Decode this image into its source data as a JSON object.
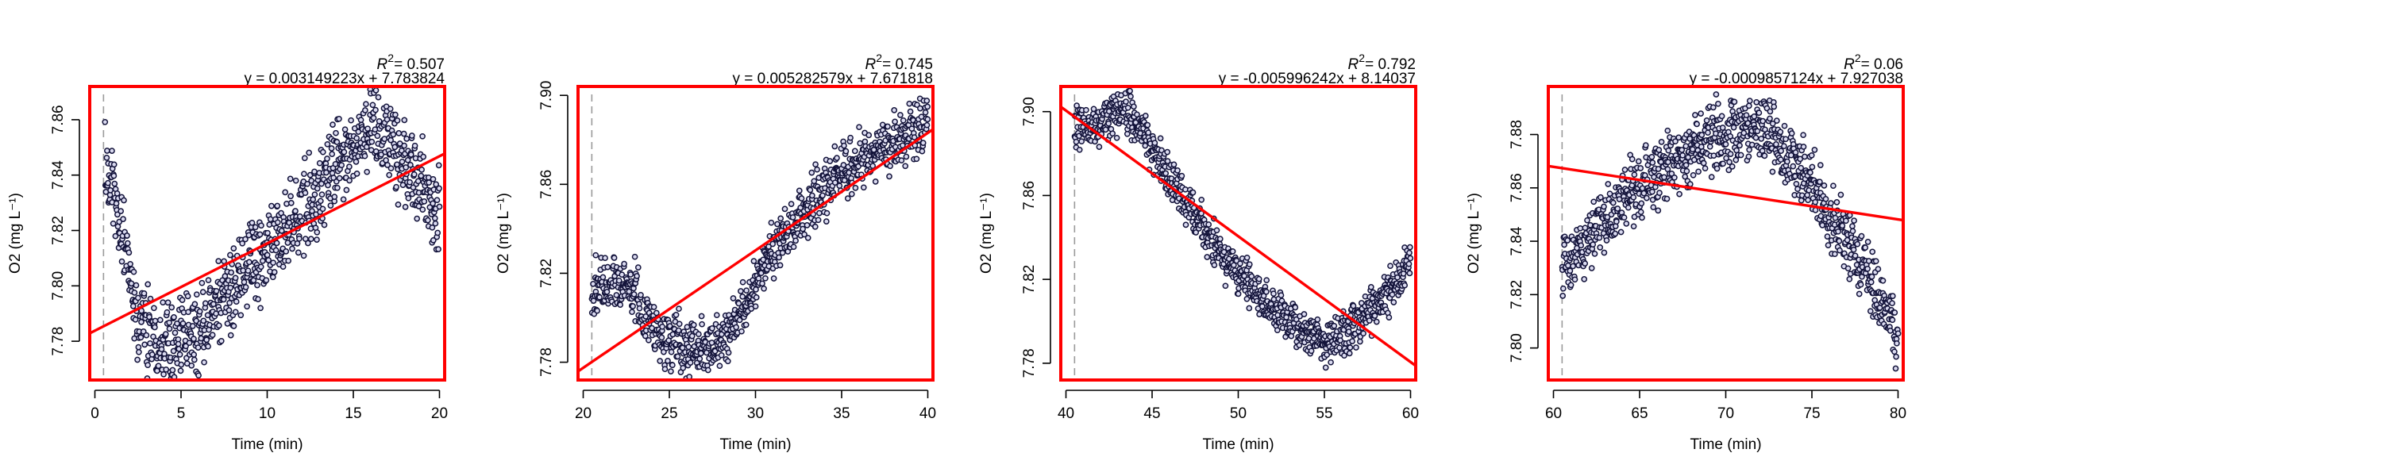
{
  "colors": {
    "frame": "#ff0000",
    "fit_line": "#ff0000",
    "points": "#13133a",
    "point_face": "#dadaf0",
    "marker": "#9a9a9a"
  },
  "chart_data": [
    {
      "type": "scatter",
      "xlabel": "Time (min)",
      "ylabel": "O2 (mg L⁻¹)",
      "r2_label": "R",
      "r2_value": "= 0.507",
      "equation": "y = 0.003149223x + 7.783824",
      "xlim": [
        -0.3,
        20.3
      ],
      "ylim": [
        7.766,
        7.872
      ],
      "xticks": [
        0,
        5,
        10,
        15,
        20
      ],
      "yticks": [
        7.78,
        7.8,
        7.82,
        7.84,
        7.86
      ],
      "ytick_format": 2,
      "start_marker_x": 0.5,
      "fit": {
        "slope": 0.003149223,
        "intercept": 7.783824
      },
      "trend": [
        [
          0.6,
          7.843
        ],
        [
          0.8,
          7.836
        ],
        [
          1.1,
          7.834
        ],
        [
          1.5,
          7.822
        ],
        [
          2.0,
          7.805
        ],
        [
          2.5,
          7.788
        ],
        [
          3.0,
          7.785
        ],
        [
          4.0,
          7.782
        ],
        [
          5.0,
          7.78
        ],
        [
          6.0,
          7.783
        ],
        [
          7.0,
          7.792
        ],
        [
          8.0,
          7.8
        ],
        [
          9.0,
          7.807
        ],
        [
          10.0,
          7.812
        ],
        [
          11.0,
          7.818
        ],
        [
          12.0,
          7.826
        ],
        [
          13.0,
          7.834
        ],
        [
          14.0,
          7.844
        ],
        [
          15.0,
          7.852
        ],
        [
          16.0,
          7.856
        ],
        [
          17.0,
          7.852
        ],
        [
          18.0,
          7.842
        ],
        [
          19.0,
          7.836
        ],
        [
          19.5,
          7.829
        ],
        [
          20.0,
          7.827
        ]
      ],
      "noise": 0.0075,
      "n_points": 900
    },
    {
      "type": "scatter",
      "xlabel": "Time (min)",
      "ylabel": "O2 (mg L⁻¹)",
      "r2_label": "R",
      "r2_value": "= 0.745",
      "equation": "y = 0.005282579x + 7.671818",
      "xlim": [
        19.7,
        40.3
      ],
      "ylim": [
        7.772,
        7.904
      ],
      "xticks": [
        20,
        25,
        30,
        35,
        40
      ],
      "yticks": [
        7.78,
        7.82,
        7.86,
        7.9
      ],
      "ytick_format": 2,
      "start_marker_x": 20.5,
      "fit": {
        "slope": 0.005282579,
        "intercept": 7.671818
      },
      "trend": [
        [
          20.5,
          7.81
        ],
        [
          21.5,
          7.815
        ],
        [
          22.5,
          7.815
        ],
        [
          23.0,
          7.81
        ],
        [
          24.0,
          7.796
        ],
        [
          25.0,
          7.79
        ],
        [
          26.0,
          7.788
        ],
        [
          27.0,
          7.786
        ],
        [
          28.0,
          7.788
        ],
        [
          29.0,
          7.8
        ],
        [
          30.0,
          7.815
        ],
        [
          31.0,
          7.83
        ],
        [
          32.0,
          7.84
        ],
        [
          33.0,
          7.85
        ],
        [
          34.0,
          7.858
        ],
        [
          35.0,
          7.865
        ],
        [
          36.0,
          7.87
        ],
        [
          37.0,
          7.874
        ],
        [
          38.0,
          7.878
        ],
        [
          39.0,
          7.882
        ],
        [
          40.0,
          7.89
        ]
      ],
      "noise": 0.006,
      "n_points": 900
    },
    {
      "type": "scatter",
      "xlabel": "Time (min)",
      "ylabel": "O2 (mg L⁻¹)",
      "r2_label": "R",
      "r2_value": "= 0.792",
      "equation": "y = -0.005996242x + 8.14037",
      "xlim": [
        39.7,
        60.3
      ],
      "ylim": [
        7.772,
        7.912
      ],
      "xticks": [
        40,
        45,
        50,
        55,
        60
      ],
      "yticks": [
        7.78,
        7.82,
        7.86,
        7.9
      ],
      "ytick_format": 2,
      "start_marker_x": 40.5,
      "fit": {
        "slope": -0.005996242,
        "intercept": 8.14037
      },
      "trend": [
        [
          40.5,
          7.89
        ],
        [
          41.5,
          7.894
        ],
        [
          42.5,
          7.898
        ],
        [
          43.5,
          7.9
        ],
        [
          44.5,
          7.89
        ],
        [
          45.5,
          7.875
        ],
        [
          46.5,
          7.862
        ],
        [
          47.5,
          7.85
        ],
        [
          48.5,
          7.838
        ],
        [
          49.5,
          7.826
        ],
        [
          50.5,
          7.818
        ],
        [
          51.5,
          7.81
        ],
        [
          52.5,
          7.803
        ],
        [
          53.5,
          7.797
        ],
        [
          54.5,
          7.792
        ],
        [
          55.5,
          7.79
        ],
        [
          56.5,
          7.796
        ],
        [
          57.5,
          7.805
        ],
        [
          58.5,
          7.812
        ],
        [
          59.5,
          7.822
        ],
        [
          60.0,
          7.83
        ]
      ],
      "noise": 0.005,
      "n_points": 900
    },
    {
      "type": "scatter",
      "xlabel": "Time (min)",
      "ylabel": "O2 (mg L⁻¹)",
      "r2_label": "R",
      "r2_value": "= 0.06",
      "equation": "y = -0.0009857124x + 7.927038",
      "xlim": [
        59.7,
        80.3
      ],
      "ylim": [
        7.788,
        7.898
      ],
      "xticks": [
        60,
        65,
        70,
        75,
        80
      ],
      "yticks": [
        7.8,
        7.82,
        7.84,
        7.86,
        7.88
      ],
      "ytick_format": 2,
      "start_marker_x": 60.5,
      "fit": {
        "slope": -0.0009857124,
        "intercept": 7.927038
      },
      "trend": [
        [
          60.5,
          7.83
        ],
        [
          61.5,
          7.836
        ],
        [
          62.5,
          7.844
        ],
        [
          63.5,
          7.85
        ],
        [
          64.5,
          7.857
        ],
        [
          65.5,
          7.862
        ],
        [
          66.5,
          7.868
        ],
        [
          67.5,
          7.873
        ],
        [
          68.5,
          7.876
        ],
        [
          69.5,
          7.879
        ],
        [
          70.5,
          7.881
        ],
        [
          71.5,
          7.882
        ],
        [
          72.5,
          7.881
        ],
        [
          73.5,
          7.875
        ],
        [
          74.5,
          7.865
        ],
        [
          75.5,
          7.855
        ],
        [
          76.5,
          7.845
        ],
        [
          77.5,
          7.835
        ],
        [
          78.5,
          7.825
        ],
        [
          79.5,
          7.812
        ],
        [
          80.0,
          7.806
        ]
      ],
      "noise": 0.006,
      "n_points": 900
    }
  ]
}
